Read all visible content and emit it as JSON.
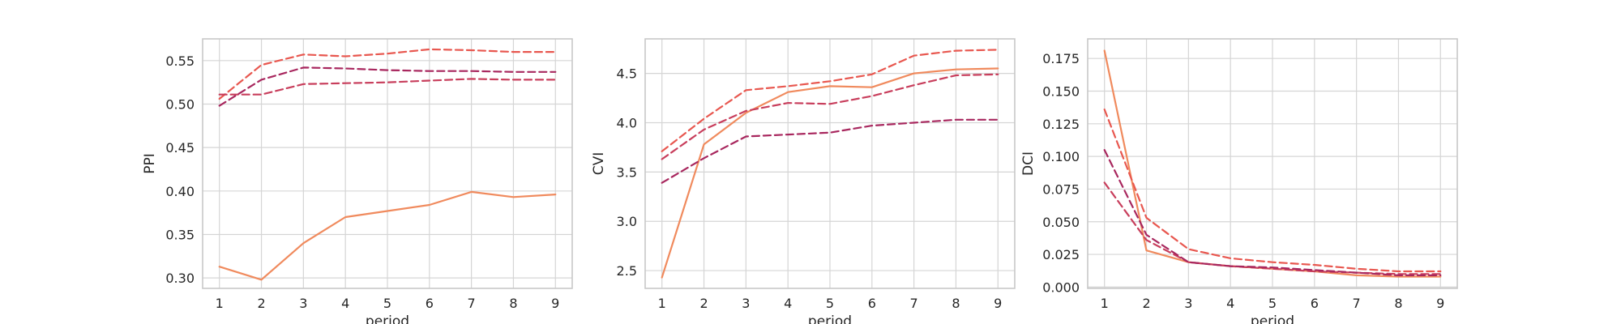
{
  "chart_data": [
    {
      "type": "line",
      "xlabel": "period",
      "ylabel": "PPI",
      "x": [
        1,
        2,
        3,
        4,
        5,
        6,
        7,
        8,
        9
      ],
      "xlim": [
        0.6,
        9.4
      ],
      "ylim": [
        0.288,
        0.575
      ],
      "yticks": [
        0.3,
        0.35,
        0.4,
        0.45,
        0.5,
        0.55
      ],
      "ytick_labels": [
        "0.30",
        "0.35",
        "0.40",
        "0.45",
        "0.50",
        "0.55"
      ],
      "grid": true,
      "series": [
        {
          "color": "#f08a5d",
          "dash": "solid",
          "values": [
            0.313,
            0.298,
            0.34,
            0.37,
            0.377,
            0.384,
            0.399,
            0.393,
            0.396
          ]
        },
        {
          "color": "#e8574f",
          "dash": "dashed",
          "values": [
            0.506,
            0.545,
            0.557,
            0.555,
            0.558,
            0.563,
            0.562,
            0.56,
            0.56
          ]
        },
        {
          "color": "#c83e5c",
          "dash": "dashed",
          "values": [
            0.511,
            0.511,
            0.523,
            0.524,
            0.525,
            0.527,
            0.529,
            0.528,
            0.528
          ]
        },
        {
          "color": "#a8275e",
          "dash": "dashed",
          "values": [
            0.498,
            0.528,
            0.542,
            0.541,
            0.539,
            0.538,
            0.538,
            0.537,
            0.537
          ]
        }
      ]
    },
    {
      "type": "line",
      "xlabel": "period",
      "ylabel": "CVI",
      "x": [
        1,
        2,
        3,
        4,
        5,
        6,
        7,
        8,
        9
      ],
      "xlim": [
        0.6,
        9.4
      ],
      "ylim": [
        2.32,
        4.85
      ],
      "yticks": [
        2.5,
        3.0,
        3.5,
        4.0,
        4.5
      ],
      "ytick_labels": [
        "2.5",
        "3.0",
        "3.5",
        "4.0",
        "4.5"
      ],
      "grid": true,
      "series": [
        {
          "color": "#f08a5d",
          "dash": "solid",
          "values": [
            2.43,
            3.78,
            4.1,
            4.31,
            4.37,
            4.36,
            4.5,
            4.54,
            4.55
          ]
        },
        {
          "color": "#e8574f",
          "dash": "dashed",
          "values": [
            3.71,
            4.04,
            4.33,
            4.37,
            4.42,
            4.49,
            4.68,
            4.73,
            4.74
          ]
        },
        {
          "color": "#c83e5c",
          "dash": "dashed",
          "values": [
            3.63,
            3.93,
            4.12,
            4.2,
            4.19,
            4.27,
            4.38,
            4.48,
            4.49
          ]
        },
        {
          "color": "#a8275e",
          "dash": "dashed",
          "values": [
            3.39,
            3.64,
            3.86,
            3.88,
            3.9,
            3.97,
            4.0,
            4.03,
            4.03
          ]
        }
      ]
    },
    {
      "type": "line",
      "xlabel": "period",
      "ylabel": "DCI",
      "x": [
        1,
        2,
        3,
        4,
        5,
        6,
        7,
        8,
        9
      ],
      "xlim": [
        0.6,
        9.4
      ],
      "ylim": [
        -0.001,
        0.19
      ],
      "yticks": [
        0.0,
        0.025,
        0.05,
        0.075,
        0.1,
        0.125,
        0.15,
        0.175
      ],
      "ytick_labels": [
        "0.000",
        "0.025",
        "0.050",
        "0.075",
        "0.100",
        "0.125",
        "0.150",
        "0.175"
      ],
      "grid": true,
      "series": [
        {
          "color": "#f08a5d",
          "dash": "solid",
          "values": [
            0.181,
            0.028,
            0.019,
            0.016,
            0.014,
            0.012,
            0.009,
            0.008,
            0.008
          ]
        },
        {
          "color": "#e8574f",
          "dash": "dashed",
          "values": [
            0.136,
            0.053,
            0.029,
            0.022,
            0.019,
            0.017,
            0.014,
            0.012,
            0.012
          ]
        },
        {
          "color": "#c83e5c",
          "dash": "dashed",
          "values": [
            0.08,
            0.036,
            0.019,
            0.016,
            0.014,
            0.012,
            0.011,
            0.01,
            0.01
          ]
        },
        {
          "color": "#a8275e",
          "dash": "dashed",
          "values": [
            0.105,
            0.04,
            0.019,
            0.016,
            0.015,
            0.013,
            0.011,
            0.009,
            0.009
          ]
        }
      ]
    }
  ]
}
